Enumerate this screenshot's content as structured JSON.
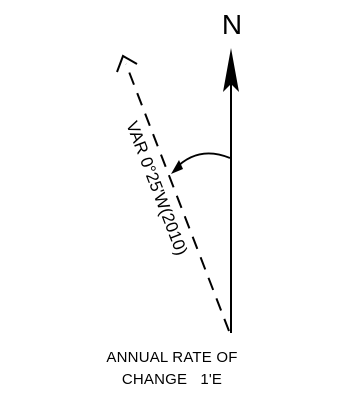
{
  "north_label": "N",
  "variation_label": "VAR 0°25'W(2010)",
  "caption": {
    "line1": "ANNUAL RATE OF",
    "line2": "CHANGE   1'E"
  },
  "colors": {
    "ink": "#000000",
    "background": "#ffffff"
  }
}
